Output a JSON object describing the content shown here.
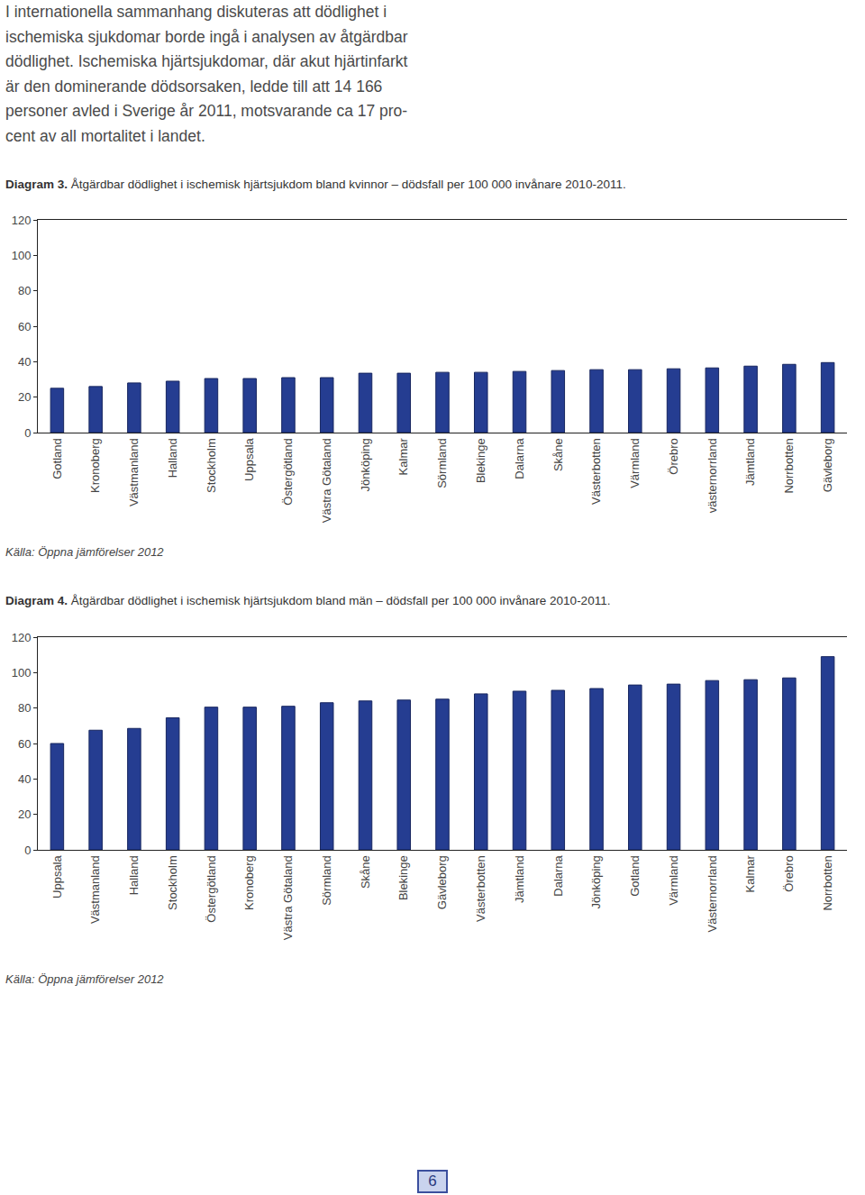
{
  "paragraph": [
    "I internationella sammanhang diskuteras att dödlighet i",
    "ischemiska sjukdomar borde ingå i analysen av åtgärdbar",
    "dödlighet. Ischemiska hjärtsjukdomar, där akut hjärtinfarkt",
    "är den dominerande dödsorsaken, ledde till att 14 166",
    "personer avled i Sverige år 2011, motsvarande ca 17 pro-",
    "cent av all mortalitet i landet."
  ],
  "chart_data": [
    {
      "type": "bar",
      "title": "Diagram 3. Åtgärdbar dödlighet i ischemisk hjärtsjukdom bland kvinnor – dödsfall per 100 000 invånare 2010-2011.",
      "categories": [
        "Gotland",
        "Kronoberg",
        "Västmanland",
        "Halland",
        "Stockholm",
        "Uppsala",
        "Östergötland",
        "Västra Götaland",
        "Jönköping",
        "Kalmar",
        "Sörmland",
        "Blekinge",
        "Dalarna",
        "Skåne",
        "Västerbotten",
        "Värmland",
        "Örebro",
        "västernorrland",
        "Jämtland",
        "Norrbotten",
        "Gävleborg"
      ],
      "values": [
        25,
        26,
        28,
        29,
        30.5,
        30.5,
        31,
        31,
        33.5,
        33.5,
        34,
        34,
        34.5,
        35,
        35.5,
        35.5,
        36,
        36.5,
        37.5,
        38.5,
        39.5
      ],
      "color": "#253d91",
      "ylim": [
        0,
        120
      ],
      "yticks": [
        0,
        20,
        40,
        60,
        80,
        100,
        120
      ],
      "grid": false,
      "source": "Källa: Öppna jämförelser 2012"
    },
    {
      "type": "bar",
      "title": "Diagram 4. Åtgärdbar dödlighet i ischemisk hjärtsjukdom bland män – dödsfall per 100 000 invånare 2010-2011.",
      "categories": [
        "Uppsala",
        "Västmanland",
        "Halland",
        "Stockholm",
        "Östergötland",
        "Kronoberg",
        "Västra Götaland",
        "Sörmland",
        "Skåne",
        "Blekinge",
        "Gävleborg",
        "Västerbotten",
        "Jämtland",
        "Dalarna",
        "Jönköping",
        "Gotland",
        "Värmland",
        "Västernorrland",
        "Kalmar",
        "Örebro",
        "Norrbotten"
      ],
      "values": [
        60,
        67.5,
        68.5,
        74.5,
        80.5,
        80.5,
        81,
        83,
        84,
        84.5,
        85,
        88,
        89.5,
        90,
        91,
        93,
        93.5,
        95.5,
        96,
        97,
        109
      ],
      "color": "#253d91",
      "ylim": [
        0,
        120
      ],
      "yticks": [
        0,
        20,
        40,
        60,
        80,
        100,
        120
      ],
      "grid": false,
      "source": "Källa: Öppna jämförelser 2012"
    }
  ],
  "page_number": "6"
}
